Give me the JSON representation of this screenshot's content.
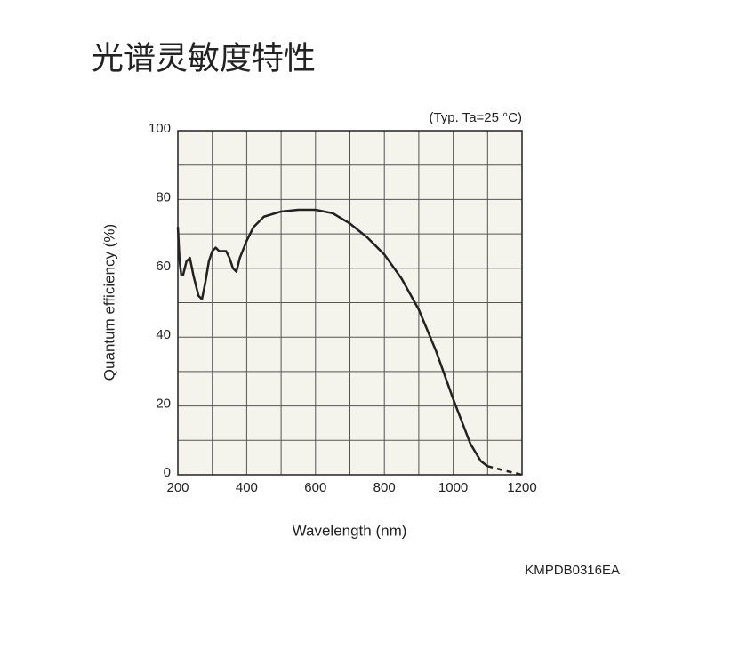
{
  "chart_data": {
    "type": "line",
    "title": "光谱灵敏度特性",
    "note": "(Typ. Ta=25 °C)",
    "x_label": "Wavelength (nm)",
    "y_label": "Quantum efficiency (%)",
    "code": "KMPDB0316EA",
    "xlim": [
      200,
      1200
    ],
    "ylim": [
      0,
      100
    ],
    "xticks": [
      200,
      400,
      600,
      800,
      1000,
      1200
    ],
    "yticks": [
      0,
      20,
      40,
      60,
      80,
      100
    ],
    "xgrid": [
      300,
      500,
      700,
      900,
      1100
    ],
    "ygrid": [
      10,
      30,
      50,
      70,
      90
    ],
    "plot_background": "#f5f4ec",
    "series": [
      {
        "style": "solid",
        "color": "#222222",
        "x": [
          200,
          205,
          210,
          215,
          225,
          235,
          245,
          260,
          270,
          280,
          290,
          300,
          310,
          320,
          330,
          340,
          350,
          360,
          370,
          380,
          400,
          420,
          450,
          500,
          550,
          600,
          650,
          700,
          750,
          800,
          850,
          900,
          950,
          1000,
          1050,
          1080,
          1100
        ],
        "values": [
          72,
          62,
          58,
          58,
          62,
          63,
          58,
          52,
          51,
          56,
          62,
          65,
          66,
          65,
          65,
          65,
          63,
          60,
          59,
          63,
          68,
          72,
          75,
          76.5,
          77,
          77,
          76,
          73,
          69,
          64,
          57,
          48,
          36,
          22,
          9,
          4,
          2.5
        ]
      },
      {
        "style": "dashed",
        "color": "#222222",
        "x": [
          1100,
          1150,
          1200
        ],
        "values": [
          2.5,
          1.2,
          0
        ]
      }
    ]
  }
}
